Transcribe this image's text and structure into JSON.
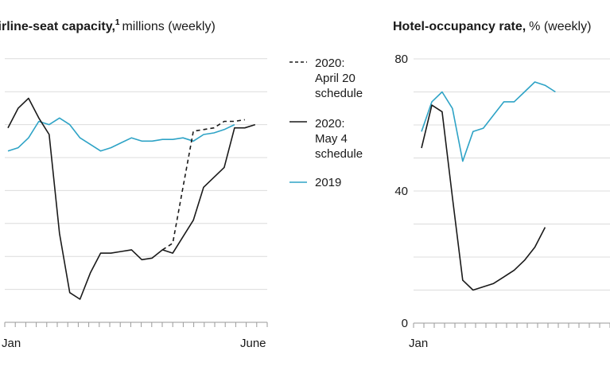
{
  "chart_data": [
    {
      "type": "line",
      "title": "Airline-seat capacity,",
      "title_sup": "1",
      "subtitle": "millions (weekly)",
      "x_start_label": "Jan",
      "x_end_label": "June",
      "weeks": 26,
      "grid": true,
      "legend_position": "right",
      "series": [
        {
          "name": "2020: May 4 schedule",
          "color": "#1a1a1a",
          "dash": "none",
          "values": [
            5.9,
            6.5,
            6.8,
            6.2,
            5.7,
            2.7,
            0.9,
            0.7,
            1.5,
            2.1,
            2.1,
            2.15,
            2.2,
            1.9,
            1.95,
            2.2,
            2.1,
            2.6,
            3.1,
            4.1,
            4.4,
            4.7,
            5.9,
            5.9,
            6.0
          ]
        },
        {
          "name": "2020: April 20 schedule",
          "color": "#1a1a1a",
          "dash": "5,4",
          "start_index": 15,
          "values": [
            2.2,
            2.4,
            4.1,
            5.8,
            5.85,
            5.9,
            6.1,
            6.1,
            6.15
          ]
        },
        {
          "name": "2019",
          "color": "#2ea3c6",
          "dash": "none",
          "values": [
            5.2,
            5.3,
            5.6,
            6.1,
            6.0,
            6.2,
            6.0,
            5.6,
            5.4,
            5.2,
            5.3,
            5.45,
            5.6,
            5.5,
            5.5,
            5.55,
            5.55,
            5.6,
            5.5,
            5.7,
            5.75,
            5.85,
            6.0
          ]
        }
      ]
    },
    {
      "type": "line",
      "title": "Hotel-occupancy rate,",
      "subtitle": "% (weekly)",
      "x_start_label": "Jan",
      "y_ticks": [
        0,
        40,
        80
      ],
      "ylim": [
        0,
        80
      ],
      "grid": true,
      "series": [
        {
          "name": "2020",
          "color": "#1a1a1a",
          "values": [
            53,
            66,
            64,
            38,
            13,
            10,
            11,
            12,
            14,
            16,
            19,
            23,
            29
          ]
        },
        {
          "name": "2019",
          "color": "#2ea3c6",
          "values": [
            58,
            67,
            70,
            65,
            49,
            58,
            59,
            63,
            67,
            67,
            70,
            73,
            72,
            70
          ]
        }
      ]
    }
  ]
}
